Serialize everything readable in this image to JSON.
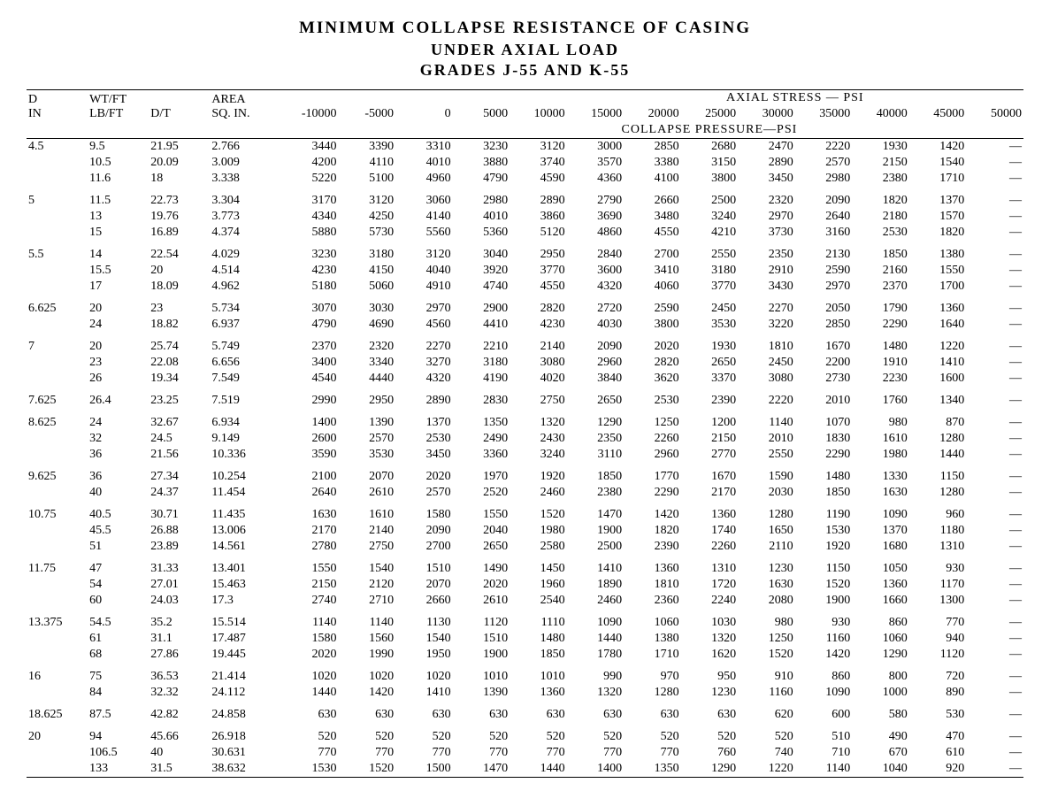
{
  "title_line1": "MINIMUM COLLAPSE RESISTANCE OF CASING",
  "title_line2": "UNDER AXIAL LOAD",
  "title_line3": "GRADES J-55 AND K-55",
  "axial_header": "AXIAL STRESS — PSI",
  "collapse_header": "COLLAPSE PRESSURE—PSI",
  "col_headers": {
    "d_top": "D",
    "d_bottom": "IN",
    "wt_top": "WT/FT",
    "wt_bottom": "LB/FT",
    "dt_top": "D/T",
    "area_top": "AREA",
    "area_bottom": "SQ. IN."
  },
  "stress_cols": [
    "-10000",
    "-5000",
    "0",
    "5000",
    "10000",
    "15000",
    "20000",
    "25000",
    "30000",
    "35000",
    "40000",
    "45000",
    "50000"
  ],
  "groups": [
    {
      "d": "4.5",
      "rows": [
        {
          "wt": "9.5",
          "dt": "21.95",
          "area": "2.766",
          "v": [
            "3440",
            "3390",
            "3310",
            "3230",
            "3120",
            "3000",
            "2850",
            "2680",
            "2470",
            "2220",
            "1930",
            "1420",
            "—"
          ]
        },
        {
          "wt": "10.5",
          "dt": "20.09",
          "area": "3.009",
          "v": [
            "4200",
            "4110",
            "4010",
            "3880",
            "3740",
            "3570",
            "3380",
            "3150",
            "2890",
            "2570",
            "2150",
            "1540",
            "—"
          ]
        },
        {
          "wt": "11.6",
          "dt": "18",
          "area": "3.338",
          "v": [
            "5220",
            "5100",
            "4960",
            "4790",
            "4590",
            "4360",
            "4100",
            "3800",
            "3450",
            "2980",
            "2380",
            "1710",
            "—"
          ]
        }
      ]
    },
    {
      "d": "5",
      "rows": [
        {
          "wt": "11.5",
          "dt": "22.73",
          "area": "3.304",
          "v": [
            "3170",
            "3120",
            "3060",
            "2980",
            "2890",
            "2790",
            "2660",
            "2500",
            "2320",
            "2090",
            "1820",
            "1370",
            "—"
          ]
        },
        {
          "wt": "13",
          "dt": "19.76",
          "area": "3.773",
          "v": [
            "4340",
            "4250",
            "4140",
            "4010",
            "3860",
            "3690",
            "3480",
            "3240",
            "2970",
            "2640",
            "2180",
            "1570",
            "—"
          ]
        },
        {
          "wt": "15",
          "dt": "16.89",
          "area": "4.374",
          "v": [
            "5880",
            "5730",
            "5560",
            "5360",
            "5120",
            "4860",
            "4550",
            "4210",
            "3730",
            "3160",
            "2530",
            "1820",
            "—"
          ]
        }
      ]
    },
    {
      "d": "5.5",
      "rows": [
        {
          "wt": "14",
          "dt": "22.54",
          "area": "4.029",
          "v": [
            "3230",
            "3180",
            "3120",
            "3040",
            "2950",
            "2840",
            "2700",
            "2550",
            "2350",
            "2130",
            "1850",
            "1380",
            "—"
          ]
        },
        {
          "wt": "15.5",
          "dt": "20",
          "area": "4.514",
          "v": [
            "4230",
            "4150",
            "4040",
            "3920",
            "3770",
            "3600",
            "3410",
            "3180",
            "2910",
            "2590",
            "2160",
            "1550",
            "—"
          ]
        },
        {
          "wt": "17",
          "dt": "18.09",
          "area": "4.962",
          "v": [
            "5180",
            "5060",
            "4910",
            "4740",
            "4550",
            "4320",
            "4060",
            "3770",
            "3430",
            "2970",
            "2370",
            "1700",
            "—"
          ]
        }
      ]
    },
    {
      "d": "6.625",
      "rows": [
        {
          "wt": "20",
          "dt": "23",
          "area": "5.734",
          "v": [
            "3070",
            "3030",
            "2970",
            "2900",
            "2820",
            "2720",
            "2590",
            "2450",
            "2270",
            "2050",
            "1790",
            "1360",
            "—"
          ]
        },
        {
          "wt": "24",
          "dt": "18.82",
          "area": "6.937",
          "v": [
            "4790",
            "4690",
            "4560",
            "4410",
            "4230",
            "4030",
            "3800",
            "3530",
            "3220",
            "2850",
            "2290",
            "1640",
            "—"
          ]
        }
      ]
    },
    {
      "d": "7",
      "rows": [
        {
          "wt": "20",
          "dt": "25.74",
          "area": "5.749",
          "v": [
            "2370",
            "2320",
            "2270",
            "2210",
            "2140",
            "2090",
            "2020",
            "1930",
            "1810",
            "1670",
            "1480",
            "1220",
            "—"
          ]
        },
        {
          "wt": "23",
          "dt": "22.08",
          "area": "6.656",
          "v": [
            "3400",
            "3340",
            "3270",
            "3180",
            "3080",
            "2960",
            "2820",
            "2650",
            "2450",
            "2200",
            "1910",
            "1410",
            "—"
          ]
        },
        {
          "wt": "26",
          "dt": "19.34",
          "area": "7.549",
          "v": [
            "4540",
            "4440",
            "4320",
            "4190",
            "4020",
            "3840",
            "3620",
            "3370",
            "3080",
            "2730",
            "2230",
            "1600",
            "—"
          ]
        }
      ]
    },
    {
      "d": "7.625",
      "rows": [
        {
          "wt": "26.4",
          "dt": "23.25",
          "area": "7.519",
          "v": [
            "2990",
            "2950",
            "2890",
            "2830",
            "2750",
            "2650",
            "2530",
            "2390",
            "2220",
            "2010",
            "1760",
            "1340",
            "—"
          ]
        }
      ]
    },
    {
      "d": "8.625",
      "rows": [
        {
          "wt": "24",
          "dt": "32.67",
          "area": "6.934",
          "v": [
            "1400",
            "1390",
            "1370",
            "1350",
            "1320",
            "1290",
            "1250",
            "1200",
            "1140",
            "1070",
            "980",
            "870",
            "—"
          ]
        },
        {
          "wt": "32",
          "dt": "24.5",
          "area": "9.149",
          "v": [
            "2600",
            "2570",
            "2530",
            "2490",
            "2430",
            "2350",
            "2260",
            "2150",
            "2010",
            "1830",
            "1610",
            "1280",
            "—"
          ]
        },
        {
          "wt": "36",
          "dt": "21.56",
          "area": "10.336",
          "v": [
            "3590",
            "3530",
            "3450",
            "3360",
            "3240",
            "3110",
            "2960",
            "2770",
            "2550",
            "2290",
            "1980",
            "1440",
            "—"
          ]
        }
      ]
    },
    {
      "d": "9.625",
      "rows": [
        {
          "wt": "36",
          "dt": "27.34",
          "area": "10.254",
          "v": [
            "2100",
            "2070",
            "2020",
            "1970",
            "1920",
            "1850",
            "1770",
            "1670",
            "1590",
            "1480",
            "1330",
            "1150",
            "—"
          ]
        },
        {
          "wt": "40",
          "dt": "24.37",
          "area": "11.454",
          "v": [
            "2640",
            "2610",
            "2570",
            "2520",
            "2460",
            "2380",
            "2290",
            "2170",
            "2030",
            "1850",
            "1630",
            "1280",
            "—"
          ]
        }
      ]
    },
    {
      "d": "10.75",
      "rows": [
        {
          "wt": "40.5",
          "dt": "30.71",
          "area": "11.435",
          "v": [
            "1630",
            "1610",
            "1580",
            "1550",
            "1520",
            "1470",
            "1420",
            "1360",
            "1280",
            "1190",
            "1090",
            "960",
            "—"
          ]
        },
        {
          "wt": "45.5",
          "dt": "26.88",
          "area": "13.006",
          "v": [
            "2170",
            "2140",
            "2090",
            "2040",
            "1980",
            "1900",
            "1820",
            "1740",
            "1650",
            "1530",
            "1370",
            "1180",
            "—"
          ]
        },
        {
          "wt": "51",
          "dt": "23.89",
          "area": "14.561",
          "v": [
            "2780",
            "2750",
            "2700",
            "2650",
            "2580",
            "2500",
            "2390",
            "2260",
            "2110",
            "1920",
            "1680",
            "1310",
            "—"
          ]
        }
      ]
    },
    {
      "d": "11.75",
      "rows": [
        {
          "wt": "47",
          "dt": "31.33",
          "area": "13.401",
          "v": [
            "1550",
            "1540",
            "1510",
            "1490",
            "1450",
            "1410",
            "1360",
            "1310",
            "1230",
            "1150",
            "1050",
            "930",
            "—"
          ]
        },
        {
          "wt": "54",
          "dt": "27.01",
          "area": "15.463",
          "v": [
            "2150",
            "2120",
            "2070",
            "2020",
            "1960",
            "1890",
            "1810",
            "1720",
            "1630",
            "1520",
            "1360",
            "1170",
            "—"
          ]
        },
        {
          "wt": "60",
          "dt": "24.03",
          "area": "17.3",
          "v": [
            "2740",
            "2710",
            "2660",
            "2610",
            "2540",
            "2460",
            "2360",
            "2240",
            "2080",
            "1900",
            "1660",
            "1300",
            "—"
          ]
        }
      ]
    },
    {
      "d": "13.375",
      "rows": [
        {
          "wt": "54.5",
          "dt": "35.2",
          "area": "15.514",
          "v": [
            "1140",
            "1140",
            "1130",
            "1120",
            "1110",
            "1090",
            "1060",
            "1030",
            "980",
            "930",
            "860",
            "770",
            "—"
          ]
        },
        {
          "wt": "61",
          "dt": "31.1",
          "area": "17.487",
          "v": [
            "1580",
            "1560",
            "1540",
            "1510",
            "1480",
            "1440",
            "1380",
            "1320",
            "1250",
            "1160",
            "1060",
            "940",
            "—"
          ]
        },
        {
          "wt": "68",
          "dt": "27.86",
          "area": "19.445",
          "v": [
            "2020",
            "1990",
            "1950",
            "1900",
            "1850",
            "1780",
            "1710",
            "1620",
            "1520",
            "1420",
            "1290",
            "1120",
            "—"
          ]
        }
      ]
    },
    {
      "d": "16",
      "rows": [
        {
          "wt": "75",
          "dt": "36.53",
          "area": "21.414",
          "v": [
            "1020",
            "1020",
            "1020",
            "1010",
            "1010",
            "990",
            "970",
            "950",
            "910",
            "860",
            "800",
            "720",
            "—"
          ]
        },
        {
          "wt": "84",
          "dt": "32.32",
          "area": "24.112",
          "v": [
            "1440",
            "1420",
            "1410",
            "1390",
            "1360",
            "1320",
            "1280",
            "1230",
            "1160",
            "1090",
            "1000",
            "890",
            "—"
          ]
        }
      ]
    },
    {
      "d": "18.625",
      "rows": [
        {
          "wt": "87.5",
          "dt": "42.82",
          "area": "24.858",
          "v": [
            "630",
            "630",
            "630",
            "630",
            "630",
            "630",
            "630",
            "630",
            "620",
            "600",
            "580",
            "530",
            "—"
          ]
        }
      ]
    },
    {
      "d": "20",
      "rows": [
        {
          "wt": "94",
          "dt": "45.66",
          "area": "26.918",
          "v": [
            "520",
            "520",
            "520",
            "520",
            "520",
            "520",
            "520",
            "520",
            "520",
            "510",
            "490",
            "470",
            "—"
          ]
        },
        {
          "wt": "106.5",
          "dt": "40",
          "area": "30.631",
          "v": [
            "770",
            "770",
            "770",
            "770",
            "770",
            "770",
            "770",
            "760",
            "740",
            "710",
            "670",
            "610",
            "—"
          ]
        },
        {
          "wt": "133",
          "dt": "31.5",
          "area": "38.632",
          "v": [
            "1530",
            "1520",
            "1500",
            "1470",
            "1440",
            "1400",
            "1350",
            "1290",
            "1220",
            "1140",
            "1040",
            "920",
            "—"
          ]
        }
      ]
    }
  ]
}
